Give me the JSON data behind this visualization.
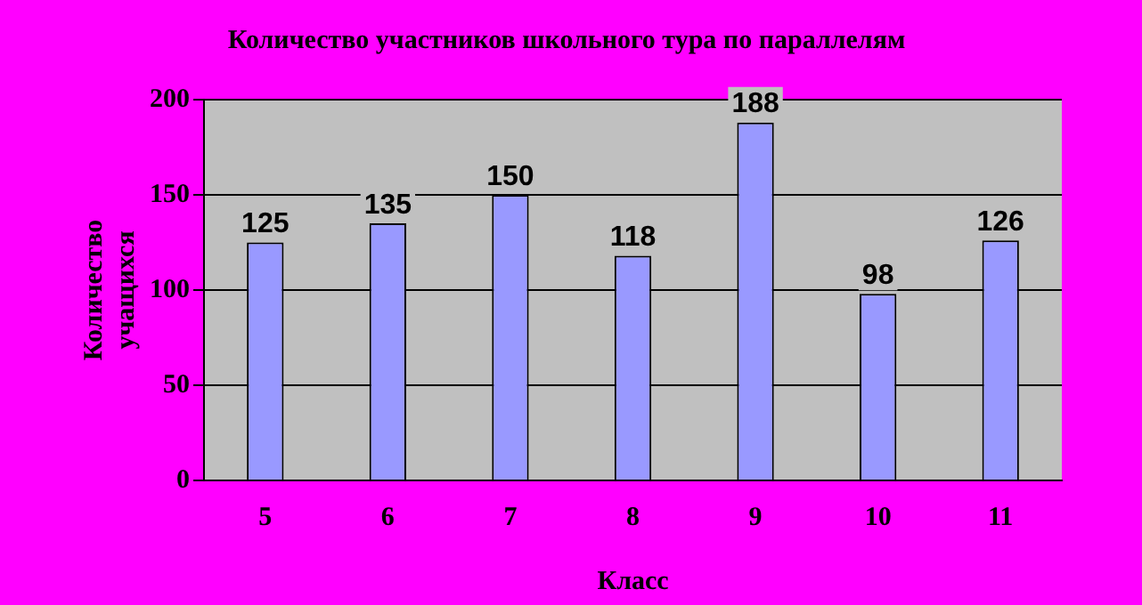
{
  "chart_data": {
    "type": "bar",
    "title": "Количество участников школьного тура по параллелям",
    "xlabel": "Класс",
    "ylabel": "Количество учащихся",
    "categories": [
      "5",
      "6",
      "7",
      "8",
      "9",
      "10",
      "11"
    ],
    "values": [
      125,
      135,
      150,
      118,
      188,
      98,
      126
    ],
    "color": "#9999ff",
    "ylim": [
      0,
      200
    ],
    "yticks": [
      0,
      50,
      100,
      150,
      200
    ],
    "grid": "y",
    "data_labels": true
  }
}
